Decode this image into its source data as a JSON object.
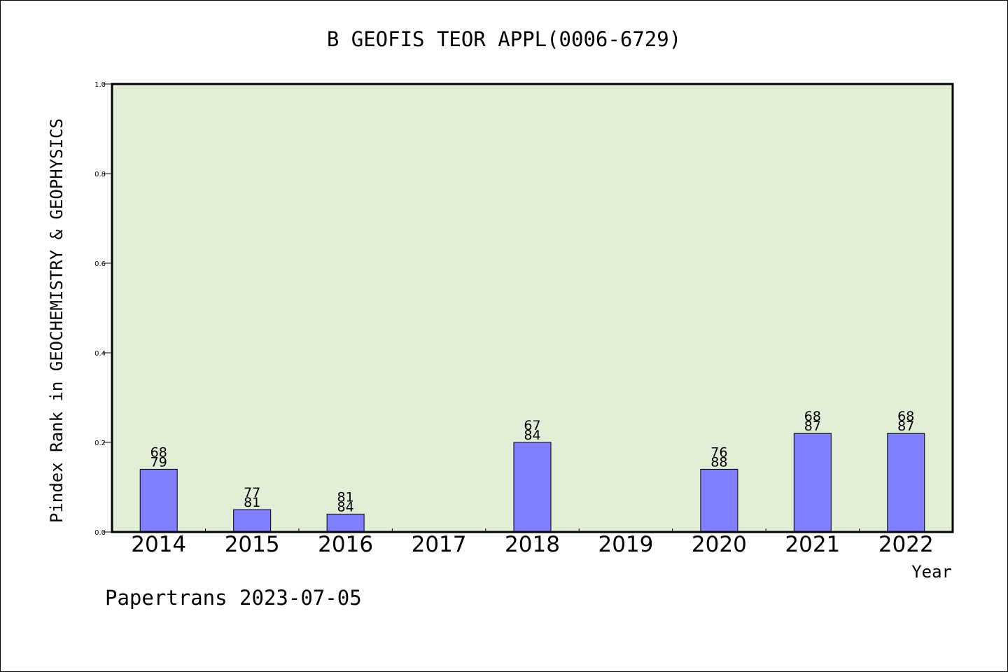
{
  "chart_data": {
    "type": "bar",
    "title": "B GEOFIS TEOR APPL(0006-6729)",
    "xlabel": "Year",
    "ylabel": "Pindex Rank in GEOCHEMISTRY & GEOPHYSICS",
    "ylim": [
      0,
      1.0
    ],
    "yticks": [
      "0.0",
      "0.2",
      "0.4",
      "0.6",
      "0.8",
      "1.0"
    ],
    "categories": [
      "2014",
      "2015",
      "2016",
      "2017",
      "2018",
      "2019",
      "2020",
      "2021",
      "2022"
    ],
    "values": [
      0.14,
      0.05,
      0.04,
      null,
      0.2,
      null,
      0.14,
      0.22,
      0.22
    ],
    "labels_top": [
      "68",
      "77",
      "81",
      "",
      "67",
      "",
      "76",
      "68",
      "68"
    ],
    "labels_bottom": [
      "79",
      "81",
      "84",
      "",
      "84",
      "",
      "88",
      "87",
      "87"
    ],
    "grid": false,
    "colors": {
      "plot_background": "#e2efd6",
      "bar_fill": "#8080ff",
      "axis": "#000000"
    }
  },
  "footer": "Papertrans 2023-07-05"
}
